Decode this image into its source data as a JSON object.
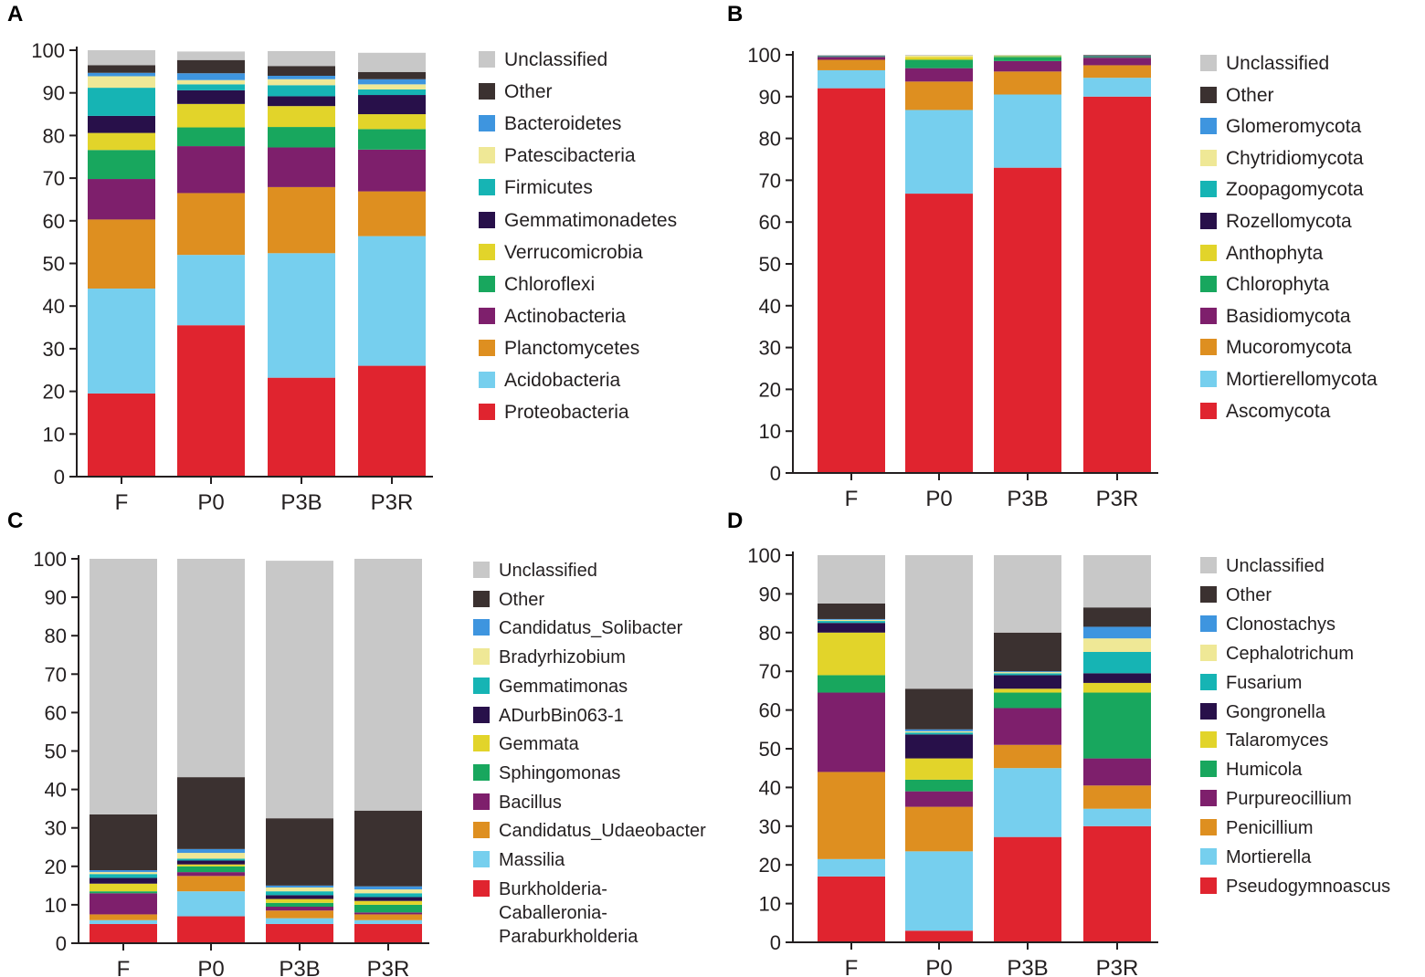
{
  "panels": [
    {
      "letter": "A",
      "chart_data": {
        "type": "bar",
        "stacked": true,
        "categories": [
          "F",
          "P0",
          "P3B",
          "P3R"
        ],
        "ylim": [
          0,
          100
        ],
        "yticks": [
          0,
          10,
          20,
          30,
          40,
          50,
          60,
          70,
          80,
          90,
          100
        ],
        "legend_position": "right",
        "series": [
          {
            "name": "Proteobacteria",
            "color": "#e0242f",
            "values": [
              19.5,
              35.5,
              23.2,
              26.0
            ]
          },
          {
            "name": "Acidobacteria",
            "color": "#76cfee",
            "values": [
              24.6,
              16.5,
              29.2,
              30.4
            ]
          },
          {
            "name": "Planctomycetes",
            "color": "#de8f20",
            "values": [
              16.2,
              14.5,
              15.5,
              10.5
            ]
          },
          {
            "name": "Actinobacteria",
            "color": "#7e1f6c",
            "values": [
              9.5,
              11.0,
              9.3,
              9.8
            ]
          },
          {
            "name": "Chloroflexi",
            "color": "#18a75e",
            "values": [
              6.8,
              4.4,
              4.8,
              4.8
            ]
          },
          {
            "name": "Verrucomicrobia",
            "color": "#e2d42a",
            "values": [
              4.0,
              5.5,
              4.9,
              3.5
            ]
          },
          {
            "name": "Gemmatimonadetes",
            "color": "#28104a",
            "values": [
              4.0,
              3.2,
              2.3,
              4.5
            ]
          },
          {
            "name": "Firmicutes",
            "color": "#16b4b4",
            "values": [
              6.6,
              1.4,
              2.6,
              1.3
            ]
          },
          {
            "name": "Patescibacteria",
            "color": "#efe896",
            "values": [
              2.7,
              1.0,
              1.4,
              1.2
            ]
          },
          {
            "name": "Bacteroidetes",
            "color": "#3e95df",
            "values": [
              0.8,
              1.6,
              0.8,
              1.2
            ]
          },
          {
            "name": "Other",
            "color": "#3b3130",
            "values": [
              1.8,
              3.1,
              2.3,
              1.7
            ]
          },
          {
            "name": "Unclassified",
            "color": "#c8c8c8",
            "values": [
              3.5,
              2.0,
              3.5,
              4.5
            ]
          }
        ]
      }
    },
    {
      "letter": "B",
      "chart_data": {
        "type": "bar",
        "stacked": true,
        "categories": [
          "F",
          "P0",
          "P3B",
          "P3R"
        ],
        "ylim": [
          0,
          100
        ],
        "yticks": [
          0,
          10,
          20,
          30,
          40,
          50,
          60,
          70,
          80,
          90,
          100
        ],
        "legend_position": "right",
        "series": [
          {
            "name": "Ascomycota",
            "color": "#e0242f",
            "values": [
              92.0,
              66.8,
              73.0,
              90.0
            ]
          },
          {
            "name": "Mortierellomycota",
            "color": "#76cfee",
            "values": [
              4.3,
              20.0,
              17.5,
              4.5
            ]
          },
          {
            "name": "Mucoromycota",
            "color": "#de8f20",
            "values": [
              2.5,
              6.8,
              5.5,
              3.0
            ]
          },
          {
            "name": "Basidiomycota",
            "color": "#7e1f6c",
            "values": [
              0.7,
              3.2,
              2.5,
              1.8
            ]
          },
          {
            "name": "Chlorophyta",
            "color": "#18a75e",
            "values": [
              0.1,
              2.0,
              1.0,
              0.2
            ]
          },
          {
            "name": "Anthophyta",
            "color": "#e2d42a",
            "values": [
              0.0,
              0.7,
              0.2,
              0.0
            ]
          },
          {
            "name": "Rozellomycota",
            "color": "#28104a",
            "values": [
              0.0,
              0.0,
              0.0,
              0.1
            ]
          },
          {
            "name": "Zoopagomycota",
            "color": "#16b4b4",
            "values": [
              0.1,
              0.0,
              0.1,
              0.1
            ]
          },
          {
            "name": "Chytridiomycota",
            "color": "#efe896",
            "values": [
              0.0,
              0.3,
              0.1,
              0.0
            ]
          },
          {
            "name": "Glomeromycota",
            "color": "#3e95df",
            "values": [
              0.0,
              0.0,
              0.0,
              0.0
            ]
          },
          {
            "name": "Other",
            "color": "#3b3130",
            "values": [
              0.1,
              0.0,
              0.0,
              0.2
            ]
          },
          {
            "name": "Unclassified",
            "color": "#c8c8c8",
            "values": [
              0.2,
              0.2,
              0.1,
              0.1
            ]
          }
        ]
      }
    },
    {
      "letter": "C",
      "chart_data": {
        "type": "bar",
        "stacked": true,
        "categories": [
          "F",
          "P0",
          "P3B",
          "P3R"
        ],
        "ylim": [
          0,
          100
        ],
        "yticks": [
          0,
          10,
          20,
          30,
          40,
          50,
          60,
          70,
          80,
          90,
          100
        ],
        "legend_position": "right",
        "series": [
          {
            "name": "Burkholderia-\nCaballeronia-\nParaburkholderia",
            "color": "#e0242f",
            "values": [
              5.0,
              7.0,
              5.0,
              5.0
            ]
          },
          {
            "name": "Massilia",
            "color": "#76cfee",
            "values": [
              1.0,
              6.5,
              1.5,
              1.0
            ]
          },
          {
            "name": "Candidatus_Udaeobacter",
            "color": "#de8f20",
            "values": [
              1.5,
              4.0,
              2.0,
              1.5
            ]
          },
          {
            "name": "Bacillus",
            "color": "#7e1f6c",
            "values": [
              5.5,
              1.0,
              1.0,
              0.5
            ]
          },
          {
            "name": "Sphingomonas",
            "color": "#18a75e",
            "values": [
              0.5,
              1.5,
              1.0,
              2.0
            ]
          },
          {
            "name": "Gemmata",
            "color": "#e2d42a",
            "values": [
              2.0,
              0.5,
              1.0,
              1.0
            ]
          },
          {
            "name": "ADurbBin063-1",
            "color": "#28104a",
            "values": [
              1.5,
              1.0,
              1.0,
              1.0
            ]
          },
          {
            "name": "Gemmatimonas",
            "color": "#16b4b4",
            "values": [
              1.0,
              0.5,
              1.0,
              1.0
            ]
          },
          {
            "name": "Bradyrhizobium",
            "color": "#efe896",
            "values": [
              0.5,
              1.5,
              1.0,
              1.0
            ]
          },
          {
            "name": "Candidatus_Solibacter",
            "color": "#3e95df",
            "values": [
              0.5,
              1.0,
              0.5,
              0.8
            ]
          },
          {
            "name": "Other",
            "color": "#3b3130",
            "values": [
              14.5,
              18.7,
              17.5,
              19.7
            ]
          },
          {
            "name": "Unclassified",
            "color": "#c8c8c8",
            "values": [
              66.5,
              56.8,
              67.0,
              65.5
            ]
          }
        ]
      }
    },
    {
      "letter": "D",
      "chart_data": {
        "type": "bar",
        "stacked": true,
        "categories": [
          "F",
          "P0",
          "P3B",
          "P3R"
        ],
        "ylim": [
          0,
          100
        ],
        "yticks": [
          0,
          10,
          20,
          30,
          40,
          50,
          60,
          70,
          80,
          90,
          100
        ],
        "legend_position": "right",
        "series": [
          {
            "name": "Pseudogymnoascus",
            "color": "#e0242f",
            "values": [
              17.0,
              3.0,
              27.2,
              30.0
            ]
          },
          {
            "name": "Mortierella",
            "color": "#76cfee",
            "values": [
              4.5,
              20.5,
              17.8,
              4.5
            ]
          },
          {
            "name": "Penicillium",
            "color": "#de8f20",
            "values": [
              22.5,
              11.5,
              6.0,
              6.0
            ]
          },
          {
            "name": "Purpureocillium",
            "color": "#7e1f6c",
            "values": [
              20.5,
              4.0,
              9.5,
              7.0
            ]
          },
          {
            "name": "Humicola",
            "color": "#18a75e",
            "values": [
              4.5,
              3.0,
              4.0,
              17.0
            ]
          },
          {
            "name": "Talaromyces",
            "color": "#e2d42a",
            "values": [
              11.0,
              5.5,
              1.0,
              2.5
            ]
          },
          {
            "name": "Gongronella",
            "color": "#28104a",
            "values": [
              2.5,
              6.2,
              3.5,
              2.5
            ]
          },
          {
            "name": "Fusarium",
            "color": "#16b4b4",
            "values": [
              0.5,
              0.5,
              0.5,
              5.5
            ]
          },
          {
            "name": "Cephalotrichum",
            "color": "#efe896",
            "values": [
              0.3,
              0.3,
              0.3,
              3.5
            ]
          },
          {
            "name": "Clonostachys",
            "color": "#3e95df",
            "values": [
              0.2,
              0.5,
              0.2,
              3.0
            ]
          },
          {
            "name": "Other",
            "color": "#3b3130",
            "values": [
              4.0,
              10.5,
              10.0,
              5.0
            ]
          },
          {
            "name": "Unclassified",
            "color": "#c8c8c8",
            "values": [
              12.5,
              34.5,
              20.0,
              13.5
            ]
          }
        ]
      }
    }
  ]
}
